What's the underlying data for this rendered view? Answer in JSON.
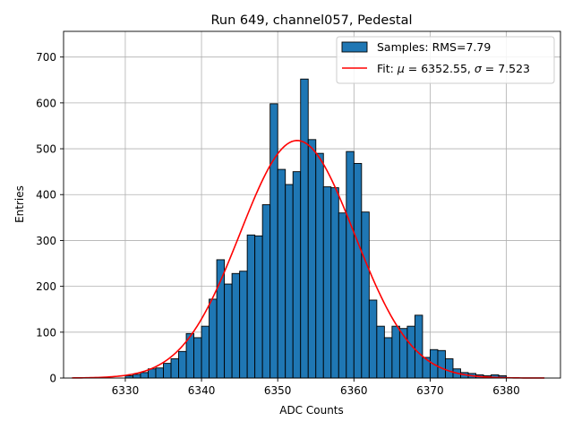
{
  "chart_data": {
    "type": "bar",
    "title": "Run 649, channel057, Pedestal",
    "xlabel": "ADC Counts",
    "ylabel": "Entries",
    "xlim": [
      6321.9,
      6387.1
    ],
    "ylim": [
      0,
      756
    ],
    "xticks": [
      6330,
      6340,
      6350,
      6360,
      6370,
      6380
    ],
    "yticks": [
      0,
      100,
      200,
      300,
      400,
      500,
      600,
      700
    ],
    "grid": true,
    "legend_position": "top-right",
    "histogram": {
      "name": "Samples: RMS=7.79",
      "color": "#1f77b4",
      "edge_color": "#000000",
      "bin_width": 1,
      "bin_start": 6330,
      "values": [
        5,
        8,
        12,
        20,
        22,
        32,
        42,
        58,
        97,
        88,
        113,
        172,
        258,
        205,
        228,
        233,
        312,
        310,
        378,
        598,
        455,
        422,
        450,
        652,
        520,
        490,
        417,
        415,
        360,
        494,
        468,
        362,
        170,
        113,
        88,
        113,
        108,
        113,
        137,
        45,
        62,
        60,
        42,
        20,
        12,
        10,
        7,
        5,
        7,
        5
      ]
    },
    "fit": {
      "name": "Fit: μ = 6352.55, σ = 7.523",
      "color": "#ff0000",
      "mu": 6352.55,
      "sigma": 7.523,
      "amplitude": 518,
      "x_range": [
        6323,
        6385
      ]
    }
  },
  "legend": {
    "hist_label": "Samples: RMS=7.79",
    "fit_label_prefix": "Fit: ",
    "fit_mu_sym": "μ",
    "fit_mu_val": " = 6352.55, ",
    "fit_sigma_sym": "σ",
    "fit_sigma_val": " = 7.523"
  }
}
